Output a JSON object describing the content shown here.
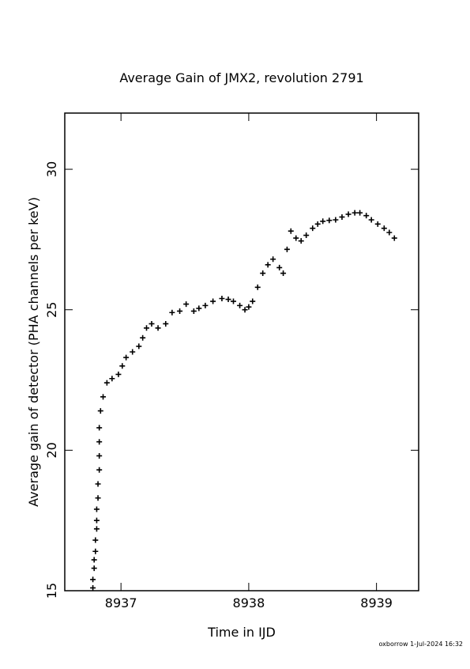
{
  "chart_data": {
    "type": "scatter",
    "title": "Average Gain of JMX2, revolution 2791",
    "x_label": "Time in IJD",
    "y_label": "Average gain of detector (PHA channels per keV)",
    "footer": "oxborrow  1-Jul-2024 16:32",
    "marker": "+",
    "color": "#000000",
    "xlim": [
      8936.56,
      8939.33
    ],
    "xticks": [
      8937,
      8938,
      8939
    ],
    "ylim": [
      15,
      32
    ],
    "yticks": [
      15,
      20,
      25,
      30
    ],
    "x": [
      8936.78,
      8936.78,
      8936.79,
      8936.79,
      8936.8,
      8936.8,
      8936.81,
      8936.81,
      8936.81,
      8936.82,
      8936.82,
      8936.83,
      8936.83,
      8936.83,
      8936.83,
      8936.84,
      8936.86,
      8936.89,
      8936.93,
      8936.98,
      8937.01,
      8937.04,
      8937.09,
      8937.14,
      8937.17,
      8937.2,
      8937.24,
      8937.29,
      8937.35,
      8937.4,
      8937.46,
      8937.51,
      8937.57,
      8937.61,
      8937.66,
      8937.72,
      8937.79,
      8937.84,
      8937.88,
      8937.93,
      8937.97,
      8938.0,
      8938.03,
      8938.07,
      8938.11,
      8938.15,
      8938.19,
      8938.24,
      8938.27,
      8938.3,
      8938.33,
      8938.37,
      8938.41,
      8938.45,
      8938.5,
      8938.54,
      8938.58,
      8938.63,
      8938.68,
      8938.73,
      8938.78,
      8938.83,
      8938.87,
      8938.92,
      8938.96,
      8939.01,
      8939.06,
      8939.1,
      8939.14
    ],
    "values": [
      15.1,
      15.4,
      15.8,
      16.1,
      16.4,
      16.8,
      17.2,
      17.5,
      17.9,
      18.3,
      18.8,
      19.3,
      19.8,
      20.3,
      20.8,
      21.4,
      21.9,
      22.4,
      22.55,
      22.7,
      23.0,
      23.3,
      23.5,
      23.7,
      24.0,
      24.35,
      24.5,
      24.35,
      24.5,
      24.9,
      24.95,
      25.2,
      24.95,
      25.05,
      25.15,
      25.3,
      25.4,
      25.37,
      25.3,
      25.15,
      25.0,
      25.1,
      25.3,
      25.8,
      26.3,
      26.6,
      26.8,
      26.5,
      26.3,
      27.15,
      27.8,
      27.55,
      27.45,
      27.65,
      27.9,
      28.05,
      28.15,
      28.18,
      28.2,
      28.3,
      28.4,
      28.45,
      28.45,
      28.35,
      28.2,
      28.05,
      27.9,
      27.75,
      27.55
    ]
  }
}
